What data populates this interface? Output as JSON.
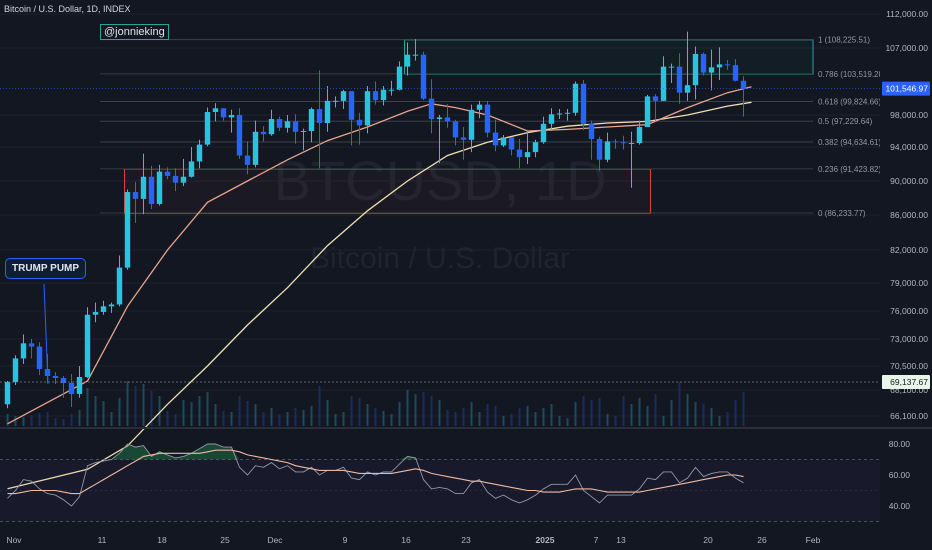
{
  "header": {
    "symbol_line": "Bitcoin / U.S. Dollar, 1D, INDEX",
    "author": "@jonnieking"
  },
  "watermark": {
    "ticker": "BTCUSD, 1D",
    "name": "Bitcoin / U.S. Dollar"
  },
  "annotation": {
    "label": "TRUMP PUMP"
  },
  "colors": {
    "background": "#131722",
    "up": "#26c6da",
    "down": "#2962ff",
    "ema_fast": "#e8a48c",
    "ema_slow": "#f0e0b0",
    "rsi": "#9598a1",
    "rsi_ma": "#f0b8a0",
    "zone_border": "#e04040",
    "fib_zone_border": "#26a69a",
    "last_price_bg": "#2962ff",
    "level_bg": "#e8f5e9"
  },
  "chart_data": {
    "type": "candlestick",
    "x_ticks": [
      "Nov",
      "11",
      "18",
      "25",
      "Dec",
      "9",
      "16",
      "23",
      "2025",
      "7",
      "13",
      "20",
      "26",
      "Feb"
    ],
    "y_ticks": [
      "112,000.00",
      "107,000.00",
      "98,000.00",
      "94,000.00",
      "90,000.00",
      "86,000.00",
      "82,000.00",
      "79,000.00",
      "76,000.00",
      "73,000.00",
      "70,500.00",
      "68,100.00",
      "66,100.00"
    ],
    "last_price": "101,546.97",
    "level_label": "69,137.67",
    "fib_levels": [
      {
        "label": "1 (108,225.51)",
        "value": 108225.51
      },
      {
        "label": "0.786 (103,519.28)",
        "value": 103519.28
      },
      {
        "label": "0.618 (99,824.66)",
        "value": 99824.66
      },
      {
        "label": "0.5 (97,229.64)",
        "value": 97229.64
      },
      {
        "label": "0.382 (94,634.61)",
        "value": 94634.61
      },
      {
        "label": "0.236 (91,423.82)",
        "value": 91423.82
      },
      {
        "label": "0 (86,233.77)",
        "value": 86233.77
      }
    ],
    "zones": [
      {
        "name": "fib-top-box",
        "from": "2024-12-16",
        "to": "2025-01-31",
        "low": 103500,
        "high": 108200
      },
      {
        "name": "support-box",
        "from": "2024-11-11",
        "to": "2025-01-15",
        "low": 86200,
        "high": 91400
      }
    ],
    "candles": [
      {
        "d": "2024-10-27",
        "o": 67000,
        "h": 69000,
        "l": 66700,
        "c": 68900
      },
      {
        "d": "2024-10-28",
        "o": 68900,
        "h": 71500,
        "l": 68600,
        "c": 71200
      },
      {
        "d": "2024-10-29",
        "o": 71200,
        "h": 73500,
        "l": 70700,
        "c": 72600
      },
      {
        "d": "2024-10-30",
        "o": 72600,
        "h": 73000,
        "l": 71200,
        "c": 72300
      },
      {
        "d": "2024-10-31",
        "o": 72300,
        "h": 72700,
        "l": 69600,
        "c": 70200
      },
      {
        "d": "2024-11-01",
        "o": 70200,
        "h": 71600,
        "l": 68800,
        "c": 69500
      },
      {
        "d": "2024-11-02",
        "o": 69500,
        "h": 69900,
        "l": 68700,
        "c": 69300
      },
      {
        "d": "2024-11-03",
        "o": 69300,
        "h": 69500,
        "l": 67500,
        "c": 68800
      },
      {
        "d": "2024-11-04",
        "o": 68800,
        "h": 69700,
        "l": 66800,
        "c": 67800
      },
      {
        "d": "2024-11-05",
        "o": 67800,
        "h": 70500,
        "l": 67500,
        "c": 69400
      },
      {
        "d": "2024-11-06",
        "o": 69400,
        "h": 76400,
        "l": 69300,
        "c": 75600
      },
      {
        "d": "2024-11-07",
        "o": 75600,
        "h": 76900,
        "l": 74800,
        "c": 75900
      },
      {
        "d": "2024-11-08",
        "o": 75900,
        "h": 77100,
        "l": 75600,
        "c": 76500
      },
      {
        "d": "2024-11-09",
        "o": 76500,
        "h": 76900,
        "l": 75800,
        "c": 76700
      },
      {
        "d": "2024-11-10",
        "o": 76700,
        "h": 81500,
        "l": 76500,
        "c": 80400
      },
      {
        "d": "2024-11-11",
        "o": 80400,
        "h": 89000,
        "l": 80200,
        "c": 88700
      },
      {
        "d": "2024-11-12",
        "o": 88700,
        "h": 89900,
        "l": 85100,
        "c": 87900
      },
      {
        "d": "2024-11-13",
        "o": 87900,
        "h": 93200,
        "l": 86100,
        "c": 90500
      },
      {
        "d": "2024-11-14",
        "o": 90500,
        "h": 91800,
        "l": 86700,
        "c": 87300
      },
      {
        "d": "2024-11-15",
        "o": 87300,
        "h": 91900,
        "l": 87100,
        "c": 91100
      },
      {
        "d": "2024-11-16",
        "o": 91100,
        "h": 91600,
        "l": 90200,
        "c": 90600
      },
      {
        "d": "2024-11-17",
        "o": 90600,
        "h": 91500,
        "l": 88800,
        "c": 89800
      },
      {
        "d": "2024-11-18",
        "o": 89800,
        "h": 92600,
        "l": 89400,
        "c": 90500
      },
      {
        "d": "2024-11-19",
        "o": 90500,
        "h": 94000,
        "l": 90400,
        "c": 92300
      },
      {
        "d": "2024-11-20",
        "o": 92300,
        "h": 94900,
        "l": 91500,
        "c": 94300
      },
      {
        "d": "2024-11-21",
        "o": 94300,
        "h": 99000,
        "l": 94100,
        "c": 98400
      },
      {
        "d": "2024-11-22",
        "o": 98400,
        "h": 99600,
        "l": 97200,
        "c": 98900
      },
      {
        "d": "2024-11-23",
        "o": 98900,
        "h": 98900,
        "l": 97300,
        "c": 97700
      },
      {
        "d": "2024-11-24",
        "o": 97700,
        "h": 98700,
        "l": 95800,
        "c": 98000
      },
      {
        "d": "2024-11-25",
        "o": 98000,
        "h": 98900,
        "l": 92600,
        "c": 93000
      },
      {
        "d": "2024-11-26",
        "o": 93000,
        "h": 94700,
        "l": 90800,
        "c": 91900
      },
      {
        "d": "2024-11-27",
        "o": 91900,
        "h": 97300,
        "l": 91600,
        "c": 95900
      },
      {
        "d": "2024-11-28",
        "o": 95900,
        "h": 96600,
        "l": 94700,
        "c": 95600
      },
      {
        "d": "2024-11-29",
        "o": 95600,
        "h": 98700,
        "l": 95400,
        "c": 97500
      },
      {
        "d": "2024-11-30",
        "o": 97500,
        "h": 97800,
        "l": 96000,
        "c": 96400
      },
      {
        "d": "2024-12-01",
        "o": 96400,
        "h": 98000,
        "l": 95800,
        "c": 97200
      },
      {
        "d": "2024-12-02",
        "o": 97200,
        "h": 98100,
        "l": 94400,
        "c": 95900
      },
      {
        "d": "2024-12-03",
        "o": 95900,
        "h": 96300,
        "l": 93600,
        "c": 96000
      },
      {
        "d": "2024-12-04",
        "o": 96000,
        "h": 99000,
        "l": 94600,
        "c": 98800
      },
      {
        "d": "2024-12-05",
        "o": 98800,
        "h": 104000,
        "l": 91500,
        "c": 97000
      },
      {
        "d": "2024-12-06",
        "o": 97000,
        "h": 101900,
        "l": 95900,
        "c": 99900
      },
      {
        "d": "2024-12-07",
        "o": 99900,
        "h": 100500,
        "l": 99000,
        "c": 99900
      },
      {
        "d": "2024-12-08",
        "o": 99900,
        "h": 101400,
        "l": 98800,
        "c": 101200
      },
      {
        "d": "2024-12-09",
        "o": 101200,
        "h": 101200,
        "l": 94200,
        "c": 97400
      },
      {
        "d": "2024-12-10",
        "o": 97400,
        "h": 98300,
        "l": 94300,
        "c": 96700
      },
      {
        "d": "2024-12-11",
        "o": 96700,
        "h": 101900,
        "l": 95700,
        "c": 101200
      },
      {
        "d": "2024-12-12",
        "o": 101200,
        "h": 102500,
        "l": 99400,
        "c": 100000
      },
      {
        "d": "2024-12-13",
        "o": 100000,
        "h": 101900,
        "l": 99300,
        "c": 101400
      },
      {
        "d": "2024-12-14",
        "o": 101400,
        "h": 102600,
        "l": 100600,
        "c": 101400
      },
      {
        "d": "2024-12-15",
        "o": 101400,
        "h": 105200,
        "l": 101300,
        "c": 104500
      },
      {
        "d": "2024-12-16",
        "o": 104500,
        "h": 107800,
        "l": 103300,
        "c": 106100
      },
      {
        "d": "2024-12-17",
        "o": 106100,
        "h": 108300,
        "l": 105300,
        "c": 106100
      },
      {
        "d": "2024-12-18",
        "o": 106100,
        "h": 106500,
        "l": 100000,
        "c": 100200
      },
      {
        "d": "2024-12-19",
        "o": 100200,
        "h": 102800,
        "l": 95700,
        "c": 97500
      },
      {
        "d": "2024-12-20",
        "o": 97500,
        "h": 98000,
        "l": 92100,
        "c": 97700
      },
      {
        "d": "2024-12-21",
        "o": 97700,
        "h": 99500,
        "l": 96400,
        "c": 97200
      },
      {
        "d": "2024-12-22",
        "o": 97200,
        "h": 97400,
        "l": 94200,
        "c": 95200
      },
      {
        "d": "2024-12-23",
        "o": 95200,
        "h": 96500,
        "l": 92500,
        "c": 94900
      },
      {
        "d": "2024-12-24",
        "o": 94900,
        "h": 99400,
        "l": 93400,
        "c": 98700
      },
      {
        "d": "2024-12-25",
        "o": 98700,
        "h": 99900,
        "l": 97600,
        "c": 99400
      },
      {
        "d": "2024-12-26",
        "o": 99400,
        "h": 99900,
        "l": 95200,
        "c": 95800
      },
      {
        "d": "2024-12-27",
        "o": 95800,
        "h": 97400,
        "l": 93500,
        "c": 94200
      },
      {
        "d": "2024-12-28",
        "o": 94200,
        "h": 95500,
        "l": 94000,
        "c": 95200
      },
      {
        "d": "2024-12-29",
        "o": 95200,
        "h": 95200,
        "l": 93000,
        "c": 93700
      },
      {
        "d": "2024-12-30",
        "o": 93700,
        "h": 95000,
        "l": 91500,
        "c": 92800
      },
      {
        "d": "2024-12-31",
        "o": 92800,
        "h": 96100,
        "l": 92000,
        "c": 93400
      },
      {
        "d": "2025-01-01",
        "o": 93400,
        "h": 94900,
        "l": 92800,
        "c": 94600
      },
      {
        "d": "2025-01-02",
        "o": 94600,
        "h": 97800,
        "l": 94400,
        "c": 96900
      },
      {
        "d": "2025-01-03",
        "o": 96900,
        "h": 98900,
        "l": 96000,
        "c": 98100
      },
      {
        "d": "2025-01-04",
        "o": 98100,
        "h": 98800,
        "l": 97500,
        "c": 98200
      },
      {
        "d": "2025-01-05",
        "o": 98200,
        "h": 98800,
        "l": 97300,
        "c": 98300
      },
      {
        "d": "2025-01-06",
        "o": 98300,
        "h": 102500,
        "l": 97900,
        "c": 102200
      },
      {
        "d": "2025-01-07",
        "o": 102200,
        "h": 102700,
        "l": 96100,
        "c": 96900
      },
      {
        "d": "2025-01-08",
        "o": 96900,
        "h": 97300,
        "l": 92500,
        "c": 95000
      },
      {
        "d": "2025-01-09",
        "o": 95000,
        "h": 95300,
        "l": 91200,
        "c": 92500
      },
      {
        "d": "2025-01-10",
        "o": 92500,
        "h": 95800,
        "l": 92200,
        "c": 94700
      },
      {
        "d": "2025-01-11",
        "o": 94700,
        "h": 95000,
        "l": 93800,
        "c": 94600
      },
      {
        "d": "2025-01-12",
        "o": 94600,
        "h": 95400,
        "l": 93700,
        "c": 94500
      },
      {
        "d": "2025-01-13",
        "o": 94500,
        "h": 95900,
        "l": 89200,
        "c": 94500
      },
      {
        "d": "2025-01-14",
        "o": 94500,
        "h": 97300,
        "l": 94300,
        "c": 96500
      },
      {
        "d": "2025-01-15",
        "o": 96500,
        "h": 100700,
        "l": 96500,
        "c": 100500
      },
      {
        "d": "2025-01-16",
        "o": 100500,
        "h": 100800,
        "l": 97300,
        "c": 99900
      },
      {
        "d": "2025-01-17",
        "o": 99900,
        "h": 105900,
        "l": 99900,
        "c": 104500
      },
      {
        "d": "2025-01-18",
        "o": 104500,
        "h": 104900,
        "l": 102300,
        "c": 104500
      },
      {
        "d": "2025-01-19",
        "o": 104500,
        "h": 106300,
        "l": 99500,
        "c": 101000
      },
      {
        "d": "2025-01-20",
        "o": 101000,
        "h": 109400,
        "l": 99900,
        "c": 102000
      },
      {
        "d": "2025-01-21",
        "o": 102000,
        "h": 107200,
        "l": 100100,
        "c": 106200
      },
      {
        "d": "2025-01-22",
        "o": 106200,
        "h": 106400,
        "l": 103300,
        "c": 103700
      },
      {
        "d": "2025-01-23",
        "o": 103700,
        "h": 106800,
        "l": 101300,
        "c": 104400
      },
      {
        "d": "2025-01-24",
        "o": 104400,
        "h": 107100,
        "l": 102700,
        "c": 104800
      },
      {
        "d": "2025-01-25",
        "o": 104800,
        "h": 105400,
        "l": 104100,
        "c": 104700
      },
      {
        "d": "2025-01-26",
        "o": 104700,
        "h": 105500,
        "l": 102500,
        "c": 102600
      },
      {
        "d": "2025-01-27",
        "o": 102600,
        "h": 103200,
        "l": 97800,
        "c": 101500
      }
    ],
    "ema_fast_points": [
      [
        0,
        65500
      ],
      [
        10,
        69000
      ],
      [
        15,
        76500
      ],
      [
        20,
        82000
      ],
      [
        25,
        87500
      ],
      [
        30,
        90000
      ],
      [
        35,
        92500
      ],
      [
        40,
        94800
      ],
      [
        45,
        96500
      ],
      [
        50,
        98500
      ],
      [
        53,
        99500
      ],
      [
        56,
        99000
      ],
      [
        60,
        98000
      ],
      [
        65,
        96000
      ],
      [
        70,
        96200
      ],
      [
        75,
        96500
      ],
      [
        80,
        96800
      ],
      [
        85,
        99000
      ],
      [
        90,
        101000
      ],
      [
        93,
        101800
      ]
    ],
    "ema_slow_points": [
      [
        0,
        60500
      ],
      [
        10,
        62000
      ],
      [
        15,
        63800
      ],
      [
        20,
        67000
      ],
      [
        25,
        70500
      ],
      [
        30,
        74500
      ],
      [
        35,
        78500
      ],
      [
        40,
        82500
      ],
      [
        45,
        86500
      ],
      [
        50,
        90000
      ],
      [
        55,
        93000
      ],
      [
        60,
        94600
      ],
      [
        65,
        95800
      ],
      [
        70,
        96600
      ],
      [
        75,
        97000
      ],
      [
        80,
        97200
      ],
      [
        85,
        98000
      ],
      [
        90,
        99200
      ],
      [
        93,
        99700
      ]
    ],
    "volumes": [
      12,
      10,
      9,
      11,
      13,
      14,
      8,
      7,
      12,
      16,
      38,
      30,
      25,
      14,
      28,
      45,
      40,
      42,
      35,
      30,
      15,
      12,
      26,
      24,
      30,
      34,
      22,
      15,
      14,
      30,
      25,
      22,
      14,
      18,
      12,
      14,
      18,
      16,
      20,
      40,
      26,
      12,
      14,
      30,
      28,
      22,
      18,
      15,
      12,
      24,
      36,
      32,
      34,
      30,
      26,
      16,
      14,
      18,
      24,
      14,
      22,
      20,
      10,
      12,
      18,
      20,
      14,
      18,
      22,
      10,
      8,
      24,
      30,
      26,
      28,
      12,
      10,
      30,
      22,
      28,
      20,
      32,
      10,
      26,
      44,
      32,
      24,
      22,
      18,
      10,
      14,
      26,
      34
    ],
    "rsi": {
      "y_ticks": [
        "80.00",
        "60.00",
        "40.00"
      ],
      "overbought": 70,
      "oversold": 30,
      "values": [
        45,
        50,
        57,
        56,
        51,
        48,
        47,
        44,
        40,
        46,
        66,
        68,
        69,
        70,
        74,
        80,
        78,
        79,
        72,
        75,
        73,
        71,
        72,
        74,
        77,
        80,
        80,
        78,
        78,
        65,
        60,
        66,
        65,
        68,
        64,
        66,
        62,
        62,
        65,
        60,
        63,
        63,
        65,
        58,
        57,
        62,
        60,
        62,
        62,
        67,
        72,
        71,
        57,
        51,
        52,
        51,
        48,
        48,
        55,
        57,
        49,
        45,
        47,
        44,
        42,
        44,
        47,
        51,
        54,
        54,
        54,
        60,
        50,
        46,
        42,
        47,
        47,
        47,
        47,
        51,
        58,
        57,
        62,
        62,
        55,
        58,
        65,
        59,
        61,
        62,
        62,
        58,
        55
      ],
      "ma_values": [
        48,
        48,
        49,
        50,
        50,
        50,
        50,
        49,
        48,
        48,
        51,
        54,
        57,
        60,
        63,
        66,
        69,
        72,
        73,
        74,
        74,
        74,
        74,
        74,
        74,
        75,
        76,
        76,
        76,
        75,
        73,
        72,
        71,
        70,
        69,
        68,
        66,
        65,
        64,
        63,
        63,
        63,
        63,
        62,
        61,
        61,
        61,
        61,
        61,
        62,
        63,
        64,
        63,
        61,
        60,
        59,
        58,
        57,
        56,
        56,
        55,
        54,
        53,
        52,
        51,
        50,
        50,
        49,
        49,
        49,
        50,
        51,
        51,
        51,
        50,
        49,
        49,
        49,
        49,
        49,
        50,
        51,
        52,
        53,
        54,
        55,
        56,
        57,
        58,
        59,
        60,
        60,
        59
      ]
    }
  }
}
